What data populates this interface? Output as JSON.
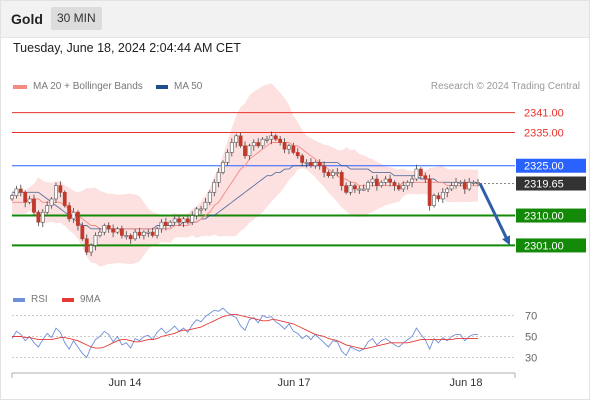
{
  "header": {
    "asset": "Gold",
    "interval": "30 MIN"
  },
  "timestamp": "Tuesday, June 18, 2024 2:04:44 AM CET",
  "legend": {
    "ma20_label": "MA 20 + Bollinger Bands",
    "ma50_label": "MA 50",
    "credit": "Research © 2024 Trading Central"
  },
  "rsi_legend": {
    "rsi_label": "RSI",
    "ma_label": "9MA"
  },
  "colors": {
    "resistance": "#e8332c",
    "pivot": "#2962ff",
    "support": "#138a07",
    "current": "#333333",
    "ma20": "#f28b82",
    "ma50": "#1f4e8c",
    "bollinger_fill": "#fde0e0",
    "candle_up": "#ffffff",
    "candle_down": "#c0392b",
    "rsi": "#6f8fd8",
    "rsi_ma": "#e53935",
    "arrow": "#2f5ea8"
  },
  "chart_data": [
    {
      "type": "candlestick",
      "title": "Gold",
      "interval": "30 MIN",
      "ylim": [
        2293,
        2346
      ],
      "x_tick_labels": [
        "Jun 14",
        "Jun 17",
        "Jun 18"
      ],
      "price_levels": [
        {
          "value": 2341.0,
          "label": "2341.00",
          "kind": "resistance"
        },
        {
          "value": 2335.0,
          "label": "2335.00",
          "kind": "resistance"
        },
        {
          "value": 2325.0,
          "label": "2325.00",
          "kind": "pivot"
        },
        {
          "value": 2319.65,
          "label": "2319.65",
          "kind": "current"
        },
        {
          "value": 2310.0,
          "label": "2310.00",
          "kind": "support"
        },
        {
          "value": 2301.0,
          "label": "2301.00",
          "kind": "support"
        }
      ],
      "forecast": {
        "direction": "down",
        "from": 2319.65,
        "to": 2301.0
      },
      "series": [
        {
          "name": "Price",
          "close": [
            2316,
            2318,
            2317,
            2314,
            2315,
            2311,
            2308,
            2311,
            2313,
            2315,
            2319,
            2317,
            2313,
            2309,
            2311,
            2307,
            2303,
            2299,
            2301,
            2304,
            2305,
            2307,
            2306,
            2305,
            2306,
            2304,
            2304,
            2303,
            2305,
            2304,
            2305,
            2305,
            2304,
            2306,
            2308,
            2307,
            2308,
            2309,
            2308,
            2309,
            2308,
            2310,
            2312,
            2312,
            2314,
            2317,
            2320,
            2323,
            2326,
            2329,
            2332,
            2334,
            2331,
            2328,
            2331,
            2332,
            2331,
            2333,
            2333,
            2334,
            2333,
            2332,
            2330,
            2331,
            2329,
            2328,
            2326,
            2326,
            2325,
            2326,
            2325,
            2323,
            2322,
            2323,
            2323,
            2319,
            2317,
            2319,
            2318,
            2318,
            2318,
            2320,
            2321,
            2319,
            2320,
            2321,
            2320,
            2319,
            2318,
            2319,
            2320,
            2321,
            2324,
            2322,
            2321,
            2313,
            2316,
            2315,
            2317,
            2318,
            2319,
            2320,
            2320,
            2318,
            2320,
            2320,
            2320
          ]
        },
        {
          "name": "MA 20",
          "values": [
            2314,
            2314,
            2314,
            2314,
            2315,
            2315,
            2315,
            2314,
            2314,
            2314,
            2314,
            2314,
            2313,
            2312,
            2311,
            2310,
            2309,
            2308,
            2307,
            2307,
            2306,
            2306,
            2306,
            2306,
            2306,
            2306,
            2306,
            2306,
            2306,
            2306,
            2306,
            2306,
            2306,
            2306,
            2306,
            2306,
            2306,
            2307,
            2307,
            2307,
            2307,
            2308,
            2308,
            2309,
            2310,
            2311,
            2313,
            2314,
            2316,
            2318,
            2320,
            2322,
            2324,
            2325,
            2327,
            2328,
            2329,
            2330,
            2331,
            2332,
            2332,
            2332,
            2332,
            2332,
            2331,
            2331,
            2330,
            2329,
            2328,
            2327,
            2326,
            2325,
            2324,
            2323,
            2322,
            2321,
            2321,
            2320,
            2320,
            2319,
            2319,
            2319,
            2319,
            2319,
            2319,
            2319,
            2319,
            2319,
            2319,
            2320,
            2320,
            2320,
            2320,
            2320,
            2320,
            2320,
            2320,
            2320,
            2320,
            2319,
            2319,
            2319,
            2319,
            2319,
            2319,
            2319,
            2319
          ]
        },
        {
          "name": "MA 50",
          "values": [
            2317,
            2317,
            2317,
            2317,
            2317,
            2317,
            2317,
            2316,
            2315,
            2314,
            2313,
            2312,
            2311,
            2310,
            2309,
            2308,
            2307,
            2307,
            2306,
            2306,
            2306,
            2306,
            2306,
            2306,
            2306,
            2306,
            2306,
            2306,
            2306,
            2306,
            2306,
            2306,
            2306,
            2307,
            2307,
            2307,
            2307,
            2307,
            2307,
            2308,
            2308,
            2308,
            2308,
            2309,
            2309,
            2310,
            2310,
            2311,
            2312,
            2313,
            2314,
            2315,
            2316,
            2317,
            2318,
            2319,
            2320,
            2321,
            2322,
            2322,
            2323,
            2323,
            2324,
            2324,
            2325,
            2325,
            2325,
            2325,
            2326,
            2326,
            2326,
            2326,
            2326,
            2326,
            2326,
            2325,
            2325,
            2324,
            2324,
            2324,
            2324,
            2324,
            2323,
            2323,
            2323,
            2323,
            2323,
            2322,
            2322,
            2322,
            2322,
            2322,
            2322,
            2321,
            2321,
            2321,
            2321,
            2320,
            2320,
            2320,
            2320,
            2320,
            2320,
            2320,
            2320,
            2320,
            2320
          ]
        }
      ]
    },
    {
      "type": "line",
      "title": "RSI",
      "ylim": [
        20,
        80
      ],
      "y_ticks": [
        70,
        50,
        30
      ],
      "x_tick_labels": [
        "Jun 14",
        "Jun 17",
        "Jun 18"
      ],
      "series": [
        {
          "name": "RSI",
          "values": [
            48,
            55,
            52,
            46,
            50,
            44,
            40,
            47,
            53,
            49,
            58,
            54,
            44,
            38,
            46,
            40,
            34,
            30,
            40,
            47,
            50,
            55,
            52,
            45,
            50,
            42,
            44,
            39,
            48,
            46,
            50,
            51,
            47,
            54,
            58,
            53,
            56,
            60,
            55,
            58,
            54,
            61,
            66,
            64,
            69,
            72,
            75,
            74,
            77,
            73,
            70,
            68,
            60,
            56,
            66,
            68,
            63,
            70,
            68,
            69,
            64,
            61,
            57,
            62,
            55,
            53,
            48,
            51,
            47,
            52,
            48,
            44,
            40,
            46,
            45,
            36,
            32,
            40,
            38,
            36,
            38,
            45,
            48,
            42,
            46,
            48,
            45,
            42,
            40,
            44,
            47,
            50,
            58,
            52,
            47,
            38,
            48,
            44,
            49,
            46,
            50,
            52,
            52,
            46,
            50,
            52,
            52
          ]
        },
        {
          "name": "9MA",
          "values": [
            50,
            50,
            50,
            49,
            49,
            48,
            47,
            47,
            47,
            47,
            48,
            49,
            49,
            48,
            47,
            46,
            44,
            42,
            40,
            39,
            39,
            40,
            42,
            44,
            46,
            47,
            47,
            46,
            45,
            45,
            46,
            47,
            47,
            48,
            50,
            51,
            52,
            53,
            55,
            56,
            56,
            57,
            58,
            59,
            61,
            63,
            65,
            67,
            69,
            70,
            71,
            71,
            70,
            69,
            68,
            67,
            66,
            65,
            65,
            66,
            66,
            65,
            64,
            63,
            62,
            60,
            58,
            56,
            54,
            52,
            51,
            50,
            48,
            47,
            46,
            44,
            42,
            41,
            40,
            39,
            38,
            39,
            40,
            41,
            42,
            43,
            44,
            44,
            44,
            44,
            44,
            45,
            46,
            47,
            47,
            47,
            47,
            47,
            47,
            47,
            47,
            48,
            48,
            48,
            48,
            48,
            48
          ]
        }
      ]
    }
  ]
}
